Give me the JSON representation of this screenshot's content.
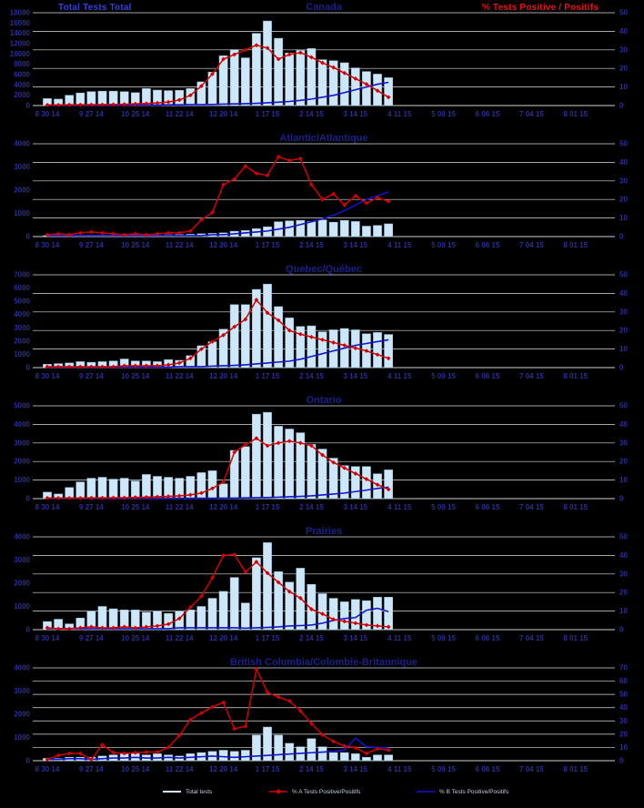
{
  "header": {
    "left_label": "Total Tests Total",
    "right_label": "% Tests Positive / Positifs"
  },
  "legend": {
    "items": [
      {
        "label": "Total tests",
        "swatch": "lightblue-line"
      },
      {
        "label": "% A Tests Positive/Positifs",
        "swatch": "red-line-diamond"
      },
      {
        "label": "% B Tests Positive/Positifs",
        "swatch": "blue-line"
      }
    ]
  },
  "colors": {
    "background": "#000000",
    "grid": "#dcdcdc",
    "axis_line": "#cfcfcf",
    "bar_fill": "#cde7f8",
    "bar_border": "#8fbddc",
    "line_a": "#d40000",
    "line_b": "#1414cc",
    "axis_text": "#2d2d96",
    "title_text": "#1f1f8a",
    "header_left": "#3340e0",
    "header_right": "#ee1111",
    "legend_text": "#c8cde0"
  },
  "x_axis": {
    "tick_labels": [
      "8 30 14",
      "9 27 14",
      "10 25 14",
      "11 22 14",
      "12 20 14",
      "1 17 15",
      "2 14 15",
      "3 14 15",
      "4 11 15",
      "5 09 15",
      "6 06 15",
      "7 04 15",
      "8 01 15"
    ],
    "tick_week_indices": [
      0,
      4,
      8,
      12,
      16,
      20,
      24,
      28,
      32,
      36,
      40,
      44,
      48
    ],
    "weeks_total": 52
  },
  "weeks": [
    "8 30 14",
    "9 06 14",
    "9 13 14",
    "9 20 14",
    "9 27 14",
    "10 04 14",
    "10 11 14",
    "10 18 14",
    "10 25 14",
    "11 01 14",
    "11 08 14",
    "11 15 14",
    "11 22 14",
    "11 29 14",
    "12 06 14",
    "12 13 14",
    "12 20 14",
    "12 27 14",
    "1 03 15",
    "1 10 15",
    "1 17 15",
    "1 24 15",
    "1 31 15",
    "2 07 15",
    "2 14 15",
    "2 21 15",
    "2 28 15",
    "3 07 15",
    "3 14 15",
    "3 21 15",
    "3 28 15",
    "4 04 15"
  ],
  "chart_data": [
    {
      "type": "bar",
      "title": "Canada",
      "left_axis": {
        "label": "Total tests",
        "min": 0,
        "max": 18000,
        "step": 2000
      },
      "right_axis": {
        "label": "% tests positive",
        "min": 0,
        "max": 50,
        "step": 10
      },
      "series": [
        {
          "name": "Total tests",
          "type": "bar",
          "axis": "left",
          "values": [
            1350,
            1250,
            2000,
            2450,
            2700,
            2800,
            2800,
            2700,
            2500,
            3300,
            3000,
            2900,
            2950,
            3300,
            4600,
            6500,
            9650,
            10850,
            9250,
            14000,
            16400,
            13050,
            10200,
            10700,
            11050,
            8900,
            8700,
            8300,
            7300,
            6600,
            6100,
            5400
          ]
        },
        {
          "name": "% A Tests Positive/Positifs",
          "type": "line",
          "axis": "right",
          "values": [
            0.3,
            0.3,
            0.4,
            0.4,
            0.5,
            0.5,
            0.6,
            0.7,
            0.9,
            1.1,
            1.4,
            1.9,
            3,
            5.5,
            10.5,
            17,
            25,
            27.5,
            30,
            32.5,
            31,
            25,
            27.5,
            28.5,
            26,
            23,
            20.5,
            17.5,
            14.5,
            11.5,
            8,
            4.5
          ]
        },
        {
          "name": "% B Tests Positive/Positifs",
          "type": "line",
          "axis": "right",
          "values": [
            0.2,
            0.2,
            0.2,
            0.2,
            0.2,
            0.2,
            0.2,
            0.2,
            0.3,
            0.3,
            0.3,
            0.4,
            0.4,
            0.5,
            0.5,
            0.6,
            0.8,
            0.9,
            1,
            1.2,
            1.5,
            1.8,
            2.2,
            2.8,
            3.5,
            4.5,
            5.5,
            7,
            8.5,
            10,
            11.5,
            12.5
          ]
        }
      ]
    },
    {
      "type": "bar",
      "title": "Atlantic/Atlantique",
      "left_axis": {
        "label": "Total tests",
        "min": 0,
        "max": 4000,
        "step": 1000
      },
      "right_axis": {
        "label": "% tests positive",
        "min": 0,
        "max": 50,
        "step": 10
      },
      "series": [
        {
          "name": "Total tests",
          "type": "bar",
          "axis": "left",
          "values": [
            40,
            40,
            50,
            60,
            60,
            70,
            60,
            60,
            70,
            60,
            70,
            80,
            90,
            100,
            120,
            140,
            160,
            230,
            260,
            340,
            420,
            640,
            680,
            700,
            650,
            720,
            620,
            700,
            650,
            450,
            480,
            550
          ]
        },
        {
          "name": "% A Tests Positive/Positifs",
          "type": "line",
          "axis": "right",
          "values": [
            1,
            1.5,
            1,
            2,
            2.5,
            2,
            1.5,
            1,
            1.5,
            1,
            1.5,
            2,
            2,
            3,
            9,
            13,
            28,
            31,
            38,
            34,
            33,
            43,
            41,
            42,
            28,
            20,
            23,
            17,
            22,
            18,
            21,
            19
          ]
        },
        {
          "name": "% B Tests Positive/Positifs",
          "type": "line",
          "axis": "right",
          "values": [
            0.5,
            0.5,
            0.5,
            0.5,
            0.5,
            0.5,
            0.5,
            0.5,
            0.5,
            0.5,
            0.5,
            0.5,
            0.5,
            0.5,
            0.5,
            1,
            1,
            1.5,
            2,
            2.5,
            3,
            4,
            5,
            6.5,
            8,
            9.5,
            11.5,
            14,
            17,
            20,
            22,
            24
          ]
        }
      ]
    },
    {
      "type": "bar",
      "title": "Quebec/Québec",
      "left_axis": {
        "label": "Total tests",
        "min": 0,
        "max": 7000,
        "step": 1000
      },
      "right_axis": {
        "label": "% tests positive",
        "min": 0,
        "max": 50,
        "step": 10
      },
      "series": [
        {
          "name": "Total tests",
          "type": "bar",
          "axis": "left",
          "values": [
            250,
            300,
            350,
            450,
            400,
            450,
            500,
            650,
            500,
            500,
            450,
            600,
            550,
            900,
            1650,
            1950,
            2900,
            4750,
            4750,
            5900,
            6300,
            4600,
            3750,
            3100,
            3150,
            2700,
            2850,
            2950,
            2850,
            2550,
            2650,
            2500
          ]
        },
        {
          "name": "% A Tests Positive/Positifs",
          "type": "line",
          "axis": "right",
          "values": [
            0.5,
            0.5,
            0.5,
            0.5,
            0.5,
            0.5,
            0.5,
            1,
            1,
            1,
            1,
            1.5,
            2.5,
            5,
            10,
            14,
            17.5,
            22,
            26,
            36.5,
            29.5,
            25.5,
            20,
            18,
            16.5,
            15,
            13.5,
            12,
            10.5,
            9,
            7,
            5
          ]
        },
        {
          "name": "% B Tests Positive/Positifs",
          "type": "line",
          "axis": "right",
          "values": [
            0.3,
            0.3,
            0.3,
            0.3,
            0.3,
            0.3,
            0.3,
            0.3,
            0.3,
            0.3,
            0.3,
            0.3,
            0.5,
            0.5,
            0.5,
            0.8,
            1,
            1.2,
            1.5,
            2,
            2.5,
            3,
            3.5,
            4.5,
            6,
            7.5,
            9,
            10.5,
            12,
            13,
            14,
            15
          ]
        }
      ]
    },
    {
      "type": "bar",
      "title": "Ontario",
      "left_axis": {
        "label": "Total tests",
        "min": 0,
        "max": 5000,
        "step": 1000
      },
      "right_axis": {
        "label": "% tests positive",
        "min": 0,
        "max": 50,
        "step": 10
      },
      "series": [
        {
          "name": "Total tests",
          "type": "bar",
          "axis": "left",
          "values": [
            350,
            250,
            600,
            900,
            1100,
            1150,
            1050,
            1100,
            950,
            1300,
            1200,
            1150,
            1100,
            1200,
            1400,
            1500,
            800,
            2600,
            2800,
            4550,
            4650,
            3900,
            3750,
            3550,
            2920,
            2670,
            2180,
            1780,
            1730,
            1730,
            1340,
            1550
          ]
        },
        {
          "name": "% A Tests Positive/Positifs",
          "type": "line",
          "axis": "right",
          "values": [
            0.3,
            0.3,
            0.3,
            0.3,
            0.4,
            0.4,
            0.5,
            0.5,
            0.7,
            0.8,
            1,
            1.2,
            1.5,
            2,
            3,
            5.5,
            9,
            25,
            29,
            32.5,
            28.5,
            30,
            31,
            30,
            28.5,
            23.5,
            19.5,
            16.5,
            13.5,
            10.5,
            7.5,
            5
          ]
        },
        {
          "name": "% B Tests Positive/Positifs",
          "type": "line",
          "axis": "right",
          "values": [
            0.2,
            0.2,
            0.2,
            0.2,
            0.2,
            0.2,
            0.2,
            0.2,
            0.2,
            0.2,
            0.2,
            0.2,
            0.2,
            0.2,
            0.2,
            0.2,
            0.3,
            0.3,
            0.4,
            0.5,
            0.6,
            0.8,
            1,
            1.2,
            1.5,
            2,
            2.5,
            3,
            3.8,
            4.6,
            5.5,
            6.2
          ]
        }
      ]
    },
    {
      "type": "bar",
      "title": "Prairies",
      "left_axis": {
        "label": "Total tests",
        "min": 0,
        "max": 4000,
        "step": 1000
      },
      "right_axis": {
        "label": "% tests positive",
        "min": 0,
        "max": 50,
        "step": 10
      },
      "series": [
        {
          "name": "Total tests",
          "type": "bar",
          "axis": "left",
          "values": [
            350,
            450,
            250,
            500,
            800,
            1000,
            900,
            850,
            850,
            750,
            800,
            700,
            800,
            850,
            1000,
            1350,
            1650,
            2250,
            1150,
            3100,
            3750,
            2500,
            2050,
            2650,
            1950,
            1550,
            1350,
            1200,
            1300,
            1250,
            1400,
            1400
          ]
        },
        {
          "name": "% A Tests Positive/Positifs",
          "type": "line",
          "axis": "right",
          "values": [
            1,
            0.5,
            0.5,
            1,
            1.5,
            1,
            1,
            1.5,
            1,
            1.5,
            2,
            3,
            6,
            12,
            18,
            28,
            40,
            40.5,
            31,
            36.5,
            30.5,
            25.5,
            20.5,
            17,
            11,
            8.5,
            5.5,
            4.5,
            3.5,
            2.5,
            2,
            1.5
          ]
        },
        {
          "name": "% B Tests Positive/Positifs",
          "type": "line",
          "axis": "right",
          "values": [
            0.5,
            0.5,
            0.5,
            0.5,
            0.5,
            0.5,
            0.5,
            0.5,
            0.5,
            0.5,
            0.5,
            0.5,
            1,
            1,
            1,
            1,
            1,
            1,
            0.8,
            1,
            1.2,
            1.5,
            2,
            2.2,
            2.5,
            3.5,
            5,
            6,
            6.5,
            10.5,
            11.5,
            9.7
          ]
        }
      ]
    },
    {
      "type": "bar",
      "title": "British Columbia/Colombie-Britannique",
      "left_axis": {
        "label": "Total tests",
        "min": 0,
        "max": 4000,
        "step": 1000
      },
      "right_axis": {
        "label": "% tests positive",
        "min": 0,
        "max": 70,
        "step": 10
      },
      "series": [
        {
          "name": "Total tests",
          "type": "bar",
          "axis": "left",
          "values": [
            100,
            100,
            150,
            150,
            150,
            200,
            250,
            300,
            300,
            250,
            300,
            250,
            200,
            300,
            350,
            400,
            450,
            400,
            450,
            1100,
            1450,
            1100,
            750,
            600,
            950,
            600,
            350,
            350,
            300,
            150,
            250,
            250
          ]
        },
        {
          "name": "% A Tests Positive/Positifs",
          "type": "line",
          "axis": "right",
          "values": [
            1,
            4,
            5.5,
            5.5,
            1,
            12,
            6,
            5.5,
            6,
            6.5,
            6.5,
            10,
            19,
            31,
            36,
            40.5,
            44,
            24,
            26,
            69,
            51.5,
            48,
            45,
            37.5,
            28,
            19.5,
            14.5,
            11,
            9.8,
            5.4,
            9,
            8
          ]
        },
        {
          "name": "% B Tests Positive/Positifs",
          "type": "line",
          "axis": "right",
          "values": [
            1,
            1,
            1.5,
            1.5,
            1,
            1.5,
            2,
            2,
            2.5,
            2,
            2,
            2.5,
            2,
            2.5,
            3,
            3.5,
            3,
            2.5,
            3,
            3.5,
            4,
            4.5,
            5,
            5.5,
            6,
            6.5,
            7,
            8,
            17,
            10.5,
            10,
            9.5
          ]
        }
      ]
    }
  ]
}
